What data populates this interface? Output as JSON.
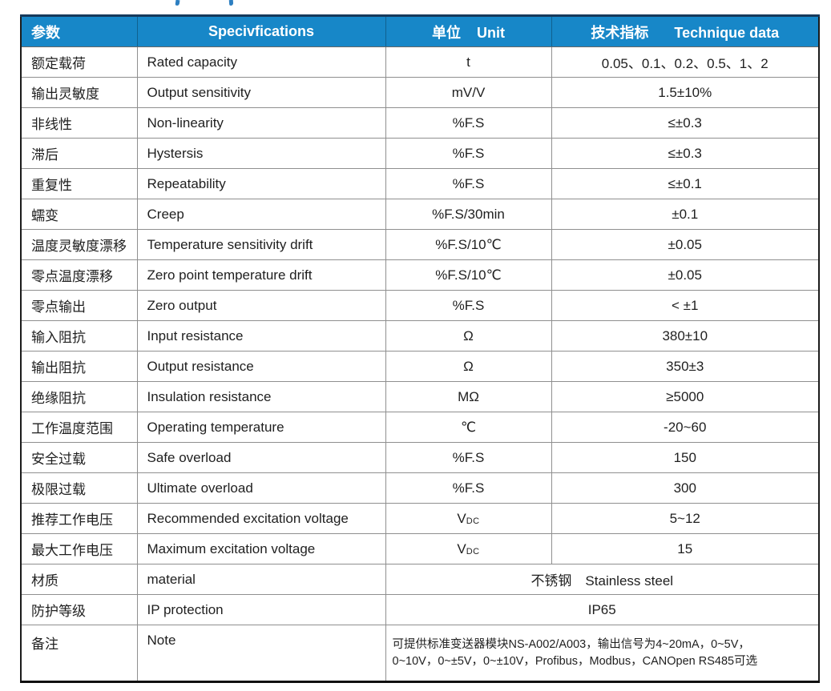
{
  "colors": {
    "header_bg": "#1787c8",
    "header_text": "#ffffff",
    "grid_line": "#8f8f8f",
    "outer_border": "#1b1b1b",
    "header_top_border": "#16395b",
    "body_text": "#1f1f1f",
    "artifact_blue": "#2d7fc1"
  },
  "header": {
    "col1_zh": "参数",
    "col2_en": "Specivfications",
    "col3_zh": "单位",
    "col3_en": "Unit",
    "col4_zh": "技术指标",
    "col4_en": "Technique data"
  },
  "table": {
    "rows": [
      {
        "param_zh": "额定载荷",
        "param_en": "Rated capacity",
        "unit": "t",
        "value": "0.05、0.1、0.2、0.5、1、2"
      },
      {
        "param_zh": "输出灵敏度",
        "param_en": "Output sensitivity",
        "unit": "mV/V",
        "value": "1.5±10%"
      },
      {
        "param_zh": "非线性",
        "param_en": "Non-linearity",
        "unit": "%F.S",
        "value": "≤±0.3"
      },
      {
        "param_zh": "滞后",
        "param_en": "Hystersis",
        "unit": "%F.S",
        "value": "≤±0.3"
      },
      {
        "param_zh": "重复性",
        "param_en": "Repeatability",
        "unit": "%F.S",
        "value": "≤±0.1"
      },
      {
        "param_zh": "蠕变",
        "param_en": "Creep",
        "unit": "%F.S/30min",
        "value": "±0.1"
      },
      {
        "param_zh": "温度灵敏度漂移",
        "param_en": "Temperature sensitivity drift",
        "unit": "%F.S/10℃",
        "value": "±0.05"
      },
      {
        "param_zh": "零点温度漂移",
        "param_en": "Zero point temperature drift",
        "unit": "%F.S/10℃",
        "value": "±0.05"
      },
      {
        "param_zh": "零点输出",
        "param_en": "Zero output",
        "unit": "%F.S",
        "value": "< ±1"
      },
      {
        "param_zh": "输入阻抗",
        "param_en": "Input resistance",
        "unit": "Ω",
        "value": "380±10"
      },
      {
        "param_zh": "输出阻抗",
        "param_en": "Output resistance",
        "unit": "Ω",
        "value": "350±3"
      },
      {
        "param_zh": "绝缘阻抗",
        "param_en": "Insulation resistance",
        "unit": "MΩ",
        "value": "≥5000"
      },
      {
        "param_zh": "工作温度范围",
        "param_en": "Operating temperature",
        "unit": "℃",
        "value": "-20~60"
      },
      {
        "param_zh": "安全过载",
        "param_en": "Safe overload",
        "unit": "%F.S",
        "value": "150"
      },
      {
        "param_zh": "极限过载",
        "param_en": "Ultimate overload",
        "unit": "%F.S",
        "value": "300"
      },
      {
        "param_zh": "推荐工作电压",
        "param_en": "Recommended excitation voltage",
        "unit": {
          "base": "V",
          "sub": "DC"
        },
        "value": "5~12"
      },
      {
        "param_zh": "最大工作电压",
        "param_en": "Maximum excitation voltage",
        "unit": {
          "base": "V",
          "sub": "DC"
        },
        "value": "15"
      },
      {
        "param_zh": "材质",
        "param_en": "material",
        "merged_value": "不锈钢　Stainless steel"
      },
      {
        "param_zh": "防护等级",
        "param_en": "IP protection",
        "merged_value": "IP65"
      },
      {
        "param_zh": "备注",
        "param_en": "Note",
        "note_lines": [
          "可提供标准变送器模块NS-A002/A003，输出信号为4~20mA，0~5V，",
          "0~10V，0~±5V，0~±10V，Profibus，Modbus，CANOpen RS485可选"
        ]
      }
    ]
  }
}
